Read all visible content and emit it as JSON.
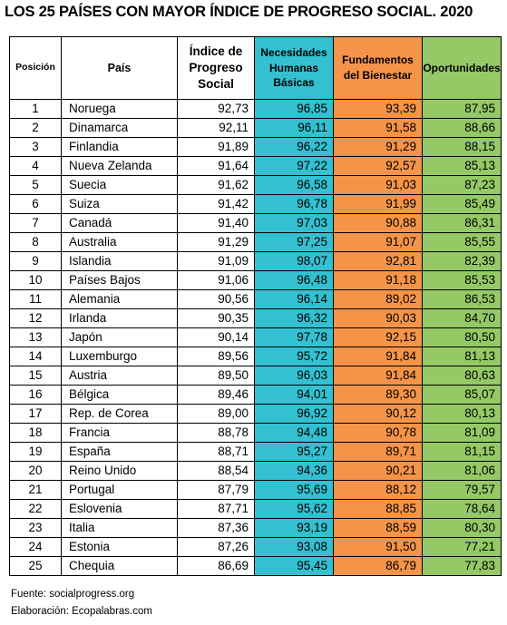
{
  "title": "LOS 25 PAÍSES CON MAYOR ÍNDICE DE PROGRESO SOCIAL. 2020",
  "headers": {
    "position": "Posición",
    "country": "País",
    "index": [
      "Índice de",
      "Progreso",
      "Social"
    ],
    "basic_needs": [
      "Necesidades",
      "Humanas",
      "Básicas"
    ],
    "foundations": [
      "Fundamentos",
      "del Bienestar"
    ],
    "opportunities": "Oportunidades"
  },
  "colors": {
    "basic_needs": "#33c0d0",
    "foundations": "#f59448",
    "opportunities": "#94c966"
  },
  "rows": [
    [
      "1",
      "Noruega",
      "92,73",
      "96,85",
      "93,39",
      "87,95"
    ],
    [
      "2",
      "Dinamarca",
      "92,11",
      "96,11",
      "91,58",
      "88,66"
    ],
    [
      "3",
      "Finlandia",
      "91,89",
      "96,22",
      "91,29",
      "88,15"
    ],
    [
      "4",
      "Nueva Zelanda",
      "91,64",
      "97,22",
      "92,57",
      "85,13"
    ],
    [
      "5",
      "Suecia",
      "91,62",
      "96,58",
      "91,03",
      "87,23"
    ],
    [
      "6",
      "Suiza",
      "91,42",
      "96,78",
      "91,99",
      "85,49"
    ],
    [
      "7",
      "Canadá",
      "91,40",
      "97,03",
      "90,88",
      "86,31"
    ],
    [
      "8",
      "Australia",
      "91,29",
      "97,25",
      "91,07",
      "85,55"
    ],
    [
      "9",
      "Islandia",
      "91,09",
      "98,07",
      "92,81",
      "82,39"
    ],
    [
      "10",
      "Países Bajos",
      "91,06",
      "96,48",
      "91,18",
      "85,53"
    ],
    [
      "11",
      "Alemania",
      "90,56",
      "96,14",
      "89,02",
      "86,53"
    ],
    [
      "12",
      "Irlanda",
      "90,35",
      "96,32",
      "90,03",
      "84,70"
    ],
    [
      "13",
      "Japón",
      "90,14",
      "97,78",
      "92,15",
      "80,50"
    ],
    [
      "14",
      "Luxemburgo",
      "89,56",
      "95,72",
      "91,84",
      "81,13"
    ],
    [
      "15",
      "Austria",
      "89,50",
      "96,03",
      "91,84",
      "80,63"
    ],
    [
      "16",
      "Bélgica",
      "89,46",
      "94,01",
      "89,30",
      "85,07"
    ],
    [
      "17",
      "Rep. de Corea",
      "89,00",
      "96,92",
      "90,12",
      "80,13"
    ],
    [
      "18",
      "Francia",
      "88,78",
      "94,48",
      "90,78",
      "81,09"
    ],
    [
      "19",
      "España",
      "88,71",
      "95,27",
      "89,71",
      "81,15"
    ],
    [
      "20",
      "Reino Unido",
      "88,54",
      "94,36",
      "90,21",
      "81,06"
    ],
    [
      "21",
      "Portugal",
      "87,79",
      "95,69",
      "88,12",
      "79,57"
    ],
    [
      "22",
      "Eslovenia",
      "87,71",
      "95,62",
      "88,85",
      "78,64"
    ],
    [
      "23",
      "Italia",
      "87,36",
      "93,19",
      "88,59",
      "80,30"
    ],
    [
      "24",
      "Estonia",
      "87,26",
      "93,08",
      "91,50",
      "77,21"
    ],
    [
      "25",
      "Chequia",
      "86,69",
      "95,45",
      "86,79",
      "77,83"
    ]
  ],
  "footer": {
    "source": "Fuente: socialprogress.org",
    "author": "Elaboración: Ecopalabras.com"
  }
}
